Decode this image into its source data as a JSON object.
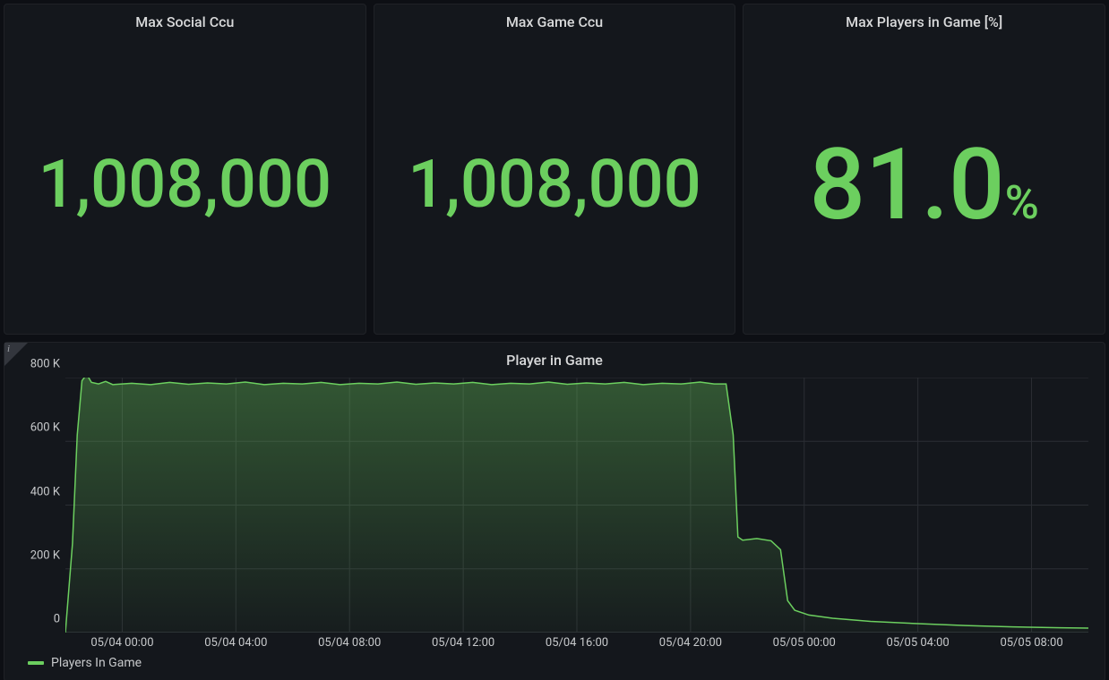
{
  "colors": {
    "page_bg": "#0d0f14",
    "panel_bg": "#14171c",
    "panel_border": "#202227",
    "title_text": "#d8d9da",
    "axis_text": "#c7c9cb",
    "accent_green": "#6ccf5f",
    "grid_line": "#2b2e34",
    "axis_line": "#43464d",
    "info_corner": "#33363d",
    "area_fill_top": "rgba(108,207,95,0.35)",
    "area_fill_bottom": "rgba(108,207,95,0.03)"
  },
  "stat_panels": [
    {
      "title": "Max Social Ccu",
      "value": "1,008,000",
      "unit": "",
      "value_fontsize": 74,
      "unit_fontsize": 0
    },
    {
      "title": "Max Game Ccu",
      "value": "1,008,000",
      "unit": "",
      "value_fontsize": 74,
      "unit_fontsize": 0
    },
    {
      "title": "Max Players in Game [%]",
      "value": "81.0",
      "unit": "%",
      "value_fontsize": 110,
      "unit_fontsize": 52
    }
  ],
  "chart": {
    "title": "Player in Game",
    "type": "area",
    "legend_label": "Players In Game",
    "series_color": "#6ccf5f",
    "line_width": 1.5,
    "background_color": "#14171c",
    "grid_color": "#2b2e34",
    "y": {
      "min": 0,
      "max": 800000,
      "tick_step": 200000,
      "ticks": [
        0,
        200000,
        400000,
        600000,
        800000
      ],
      "tick_labels": [
        "0",
        "200 K",
        "400 K",
        "600 K",
        "800 K"
      ]
    },
    "x": {
      "min": 0,
      "max": 2160,
      "ticks": [
        120,
        360,
        600,
        840,
        1080,
        1320,
        1560,
        1800,
        2040
      ],
      "tick_labels": [
        "05/04 00:00",
        "05/04 04:00",
        "05/04 08:00",
        "05/04 12:00",
        "05/04 16:00",
        "05/04 20:00",
        "05/05 00:00",
        "05/05 04:00",
        "05/05 08:00"
      ]
    },
    "data": [
      [
        0,
        0
      ],
      [
        15,
        280000
      ],
      [
        25,
        620000
      ],
      [
        35,
        790000
      ],
      [
        45,
        810000
      ],
      [
        55,
        785000
      ],
      [
        70,
        780000
      ],
      [
        85,
        788000
      ],
      [
        100,
        778000
      ],
      [
        140,
        782000
      ],
      [
        180,
        778000
      ],
      [
        220,
        785000
      ],
      [
        260,
        779000
      ],
      [
        300,
        783000
      ],
      [
        340,
        780000
      ],
      [
        380,
        786000
      ],
      [
        420,
        778000
      ],
      [
        460,
        782000
      ],
      [
        500,
        780000
      ],
      [
        540,
        785000
      ],
      [
        580,
        778000
      ],
      [
        620,
        782000
      ],
      [
        660,
        780000
      ],
      [
        700,
        786000
      ],
      [
        740,
        779000
      ],
      [
        780,
        783000
      ],
      [
        820,
        780000
      ],
      [
        860,
        785000
      ],
      [
        900,
        778000
      ],
      [
        940,
        782000
      ],
      [
        980,
        780000
      ],
      [
        1020,
        786000
      ],
      [
        1060,
        779000
      ],
      [
        1100,
        783000
      ],
      [
        1140,
        780000
      ],
      [
        1180,
        785000
      ],
      [
        1220,
        778000
      ],
      [
        1260,
        782000
      ],
      [
        1300,
        780000
      ],
      [
        1340,
        786000
      ],
      [
        1370,
        780000
      ],
      [
        1395,
        780000
      ],
      [
        1410,
        620000
      ],
      [
        1420,
        300000
      ],
      [
        1430,
        290000
      ],
      [
        1460,
        295000
      ],
      [
        1490,
        288000
      ],
      [
        1510,
        260000
      ],
      [
        1525,
        100000
      ],
      [
        1540,
        70000
      ],
      [
        1570,
        55000
      ],
      [
        1620,
        45000
      ],
      [
        1700,
        35000
      ],
      [
        1800,
        28000
      ],
      [
        1900,
        22000
      ],
      [
        2000,
        18000
      ],
      [
        2100,
        15000
      ],
      [
        2160,
        14000
      ]
    ]
  }
}
